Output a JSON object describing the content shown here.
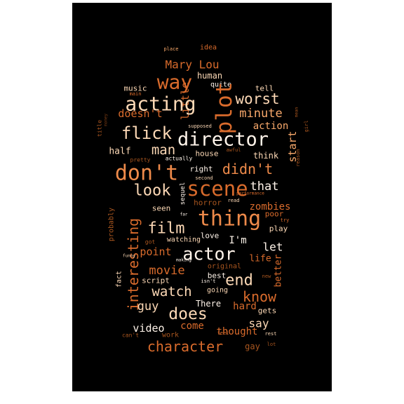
{
  "background": "#000000",
  "palette": {
    "white": "#fff4ea",
    "cream": "#fdd9b6",
    "peach": "#f9a96b",
    "orange": "#ee8a4a",
    "dark_orange": "#d96b2c",
    "rust": "#a9561f",
    "brown": "#7a3c14"
  },
  "words": [
    {
      "text": "place",
      "color": "peach"
    },
    {
      "text": "idea",
      "color": "dark_orange"
    },
    {
      "text": "Mary Lou",
      "color": "dark_orange"
    },
    {
      "text": "way",
      "color": "dark_orange"
    },
    {
      "text": "human",
      "color": "cream"
    },
    {
      "text": "music",
      "color": "cream"
    },
    {
      "text": "main",
      "color": "dark_orange"
    },
    {
      "text": "little",
      "color": "dark_orange"
    },
    {
      "text": "quite",
      "color": "white"
    },
    {
      "text": "tell",
      "color": "cream"
    },
    {
      "text": "acting",
      "color": "cream"
    },
    {
      "text": "plot",
      "color": "dark_orange"
    },
    {
      "text": "worst",
      "color": "cream"
    },
    {
      "text": "minute",
      "color": "peach"
    },
    {
      "text": "doesn't",
      "color": "dark_orange"
    },
    {
      "text": "money",
      "color": "brown"
    },
    {
      "text": "title",
      "color": "rust"
    },
    {
      "text": "mean",
      "color": "rust"
    },
    {
      "text": "girl",
      "color": "rust"
    },
    {
      "text": "supposed",
      "color": "cream"
    },
    {
      "text": "action",
      "color": "peach"
    },
    {
      "text": "flick",
      "color": "cream"
    },
    {
      "text": "director",
      "color": "white"
    },
    {
      "text": "awful",
      "color": "rust"
    },
    {
      "text": "start",
      "color": "peach"
    },
    {
      "text": "half",
      "color": "cream"
    },
    {
      "text": "man",
      "color": "cream"
    },
    {
      "text": "house",
      "color": "cream"
    },
    {
      "text": "think",
      "color": "cream"
    },
    {
      "text": "reason",
      "color": "rust"
    },
    {
      "text": "pretty",
      "color": "rust"
    },
    {
      "text": "actually",
      "color": "white"
    },
    {
      "text": "don't",
      "color": "orange"
    },
    {
      "text": "right",
      "color": "white"
    },
    {
      "text": "didn't",
      "color": "orange"
    },
    {
      "text": "second",
      "color": "cream"
    },
    {
      "text": "scene",
      "color": "dark_orange"
    },
    {
      "text": "that",
      "color": "white"
    },
    {
      "text": "look",
      "color": "cream"
    },
    {
      "text": "sequel",
      "color": "white"
    },
    {
      "text": "performance",
      "color": "dark_orange"
    },
    {
      "text": "read",
      "color": "cream"
    },
    {
      "text": "horror",
      "color": "rust"
    },
    {
      "text": "zombies",
      "color": "dark_orange"
    },
    {
      "text": "probably",
      "color": "rust"
    },
    {
      "text": "seen",
      "color": "cream"
    },
    {
      "text": "thing",
      "color": "orange"
    },
    {
      "text": "far",
      "color": "white"
    },
    {
      "text": "poor",
      "color": "dark_orange"
    },
    {
      "text": "try",
      "color": "dark_orange"
    },
    {
      "text": "film",
      "color": "cream"
    },
    {
      "text": "play",
      "color": "cream"
    },
    {
      "text": "interesting",
      "color": "dark_orange"
    },
    {
      "text": "got",
      "color": "rust"
    },
    {
      "text": "watching",
      "color": "cream"
    },
    {
      "text": "I'm",
      "color": "white"
    },
    {
      "text": "love",
      "color": "white"
    },
    {
      "text": "let",
      "color": "white"
    },
    {
      "text": "point",
      "color": "dark_orange"
    },
    {
      "text": "actor",
      "color": "white"
    },
    {
      "text": "funny",
      "color": "cream"
    },
    {
      "text": "making",
      "color": "white"
    },
    {
      "text": "life",
      "color": "dark_orange"
    },
    {
      "text": "movie",
      "color": "dark_orange"
    },
    {
      "text": "original",
      "color": "rust"
    },
    {
      "text": "fact",
      "color": "cream"
    },
    {
      "text": "better",
      "color": "dark_orange"
    },
    {
      "text": "script",
      "color": "cream"
    },
    {
      "text": "best",
      "color": "white"
    },
    {
      "text": "end",
      "color": "cream"
    },
    {
      "text": "isn't",
      "color": "white"
    },
    {
      "text": "new",
      "color": "rust"
    },
    {
      "text": "watch",
      "color": "cream"
    },
    {
      "text": "going",
      "color": "cream"
    },
    {
      "text": "know",
      "color": "dark_orange"
    },
    {
      "text": "There",
      "color": "white"
    },
    {
      "text": "guy",
      "color": "cream"
    },
    {
      "text": "hard",
      "color": "dark_orange"
    },
    {
      "text": "does",
      "color": "cream"
    },
    {
      "text": "gets",
      "color": "cream"
    },
    {
      "text": "say",
      "color": "cream"
    },
    {
      "text": "video",
      "color": "white"
    },
    {
      "text": "come",
      "color": "dark_orange"
    },
    {
      "text": "thought",
      "color": "dark_orange"
    },
    {
      "text": "can't",
      "color": "rust"
    },
    {
      "text": "work",
      "color": "rust"
    },
    {
      "text": "feel",
      "color": "dark_orange"
    },
    {
      "text": "rest",
      "color": "cream"
    },
    {
      "text": "character",
      "color": "dark_orange"
    },
    {
      "text": "gay",
      "color": "rust"
    },
    {
      "text": "lot",
      "color": "rust"
    }
  ]
}
